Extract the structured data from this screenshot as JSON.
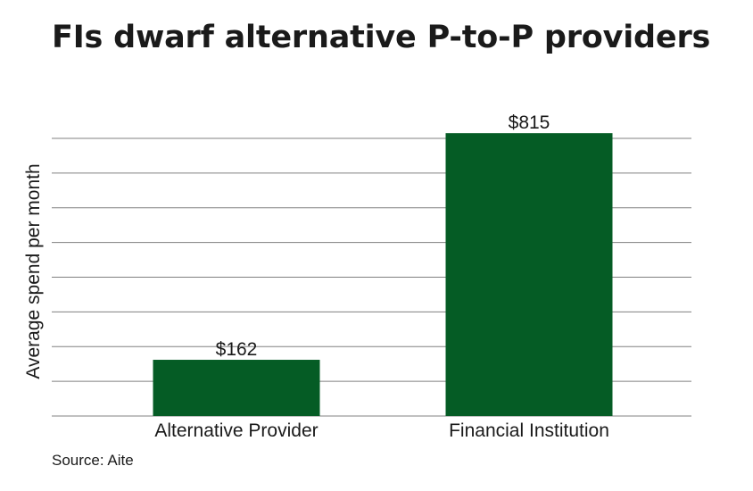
{
  "title": "FIs dwarf alternative P-to-P providers",
  "source": "Source: Aite",
  "colors": {
    "bar": "#055c25",
    "grid": "#808080",
    "text": "#1a1a1a"
  },
  "chart_data": {
    "type": "bar",
    "categories": [
      "Alternative Provider",
      "Financial Institution"
    ],
    "values": [
      162,
      815
    ],
    "value_labels": [
      "$162",
      "$815"
    ],
    "ylabel": "Average spend per month",
    "xlabel": "",
    "ylim": [
      0,
      800
    ],
    "y_tick_step": 100,
    "y_tick_labels_shown": false,
    "grid": true,
    "legend": "none"
  }
}
